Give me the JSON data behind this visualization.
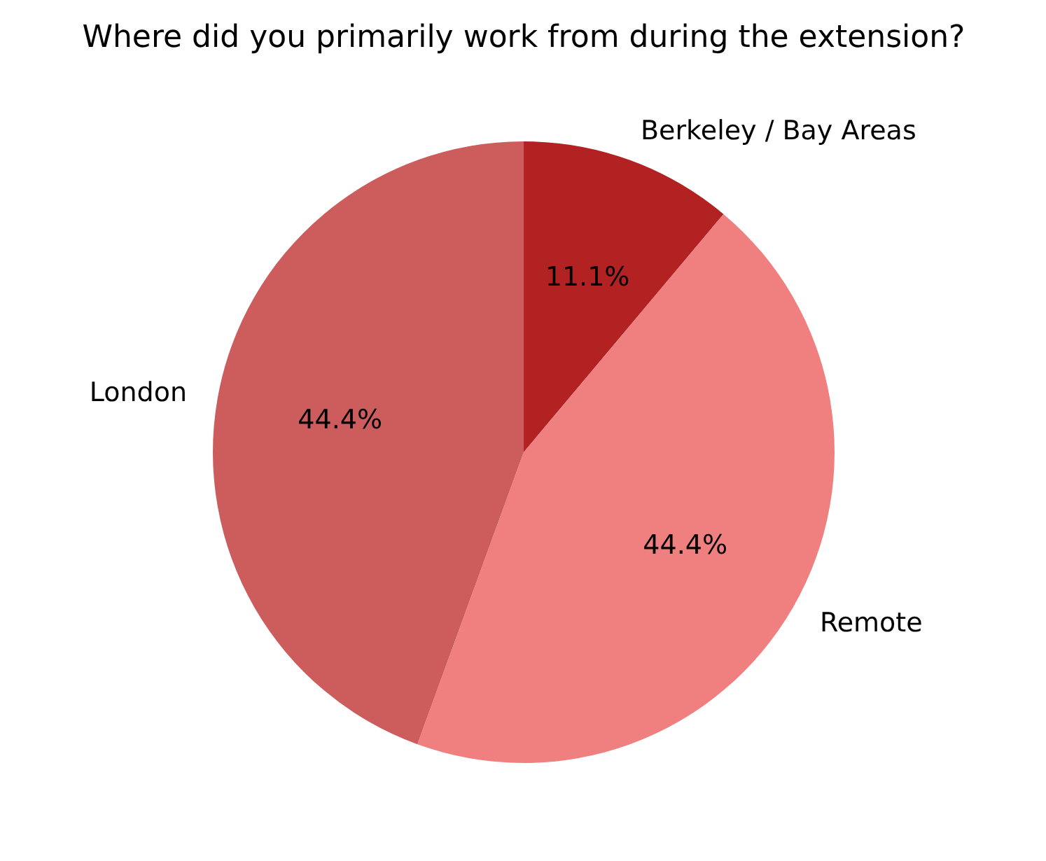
{
  "chart_data": {
    "type": "pie",
    "title": "Where did you primarily work from during the extension?",
    "categories": [
      "Berkeley / Bay Areas",
      "Remote",
      "London"
    ],
    "values": [
      11.1,
      44.4,
      44.4
    ],
    "colors": [
      "#b22222",
      "#f08080",
      "#cd5c5c"
    ],
    "value_labels": [
      "11.1%",
      "44.4%",
      "44.4%"
    ]
  }
}
